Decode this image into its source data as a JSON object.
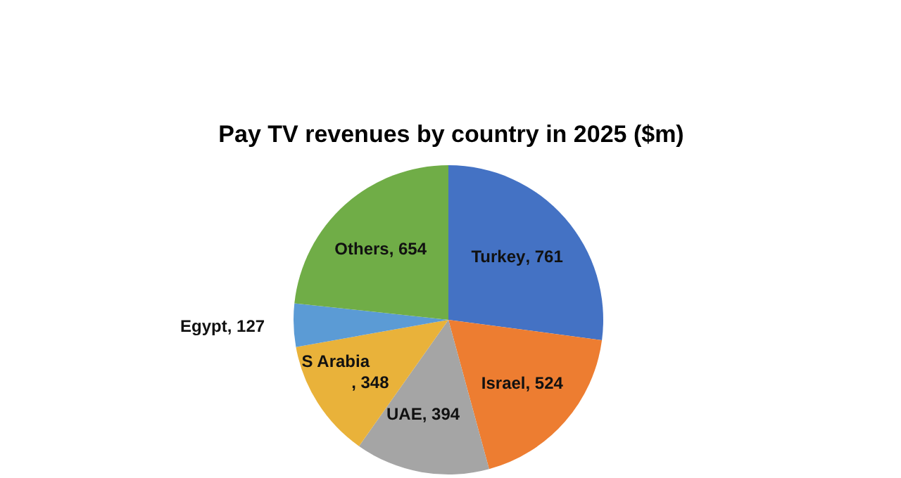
{
  "chart_data": {
    "type": "pie",
    "title": "Pay TV revenues by country in 2025 ($m)",
    "categories": [
      "Turkey",
      "Israel",
      "UAE",
      "S Arabia",
      "Egypt",
      "Others"
    ],
    "values": [
      761,
      524,
      394,
      348,
      127,
      654
    ],
    "colors": [
      "#4472c4",
      "#ed7d31",
      "#a5a5a5",
      "#e9b23a",
      "#5b9bd5",
      "#70ad47"
    ],
    "value_labels": [
      ", 761",
      ", 524",
      ", 394",
      ", 348",
      ", 127",
      ", 654"
    ]
  }
}
